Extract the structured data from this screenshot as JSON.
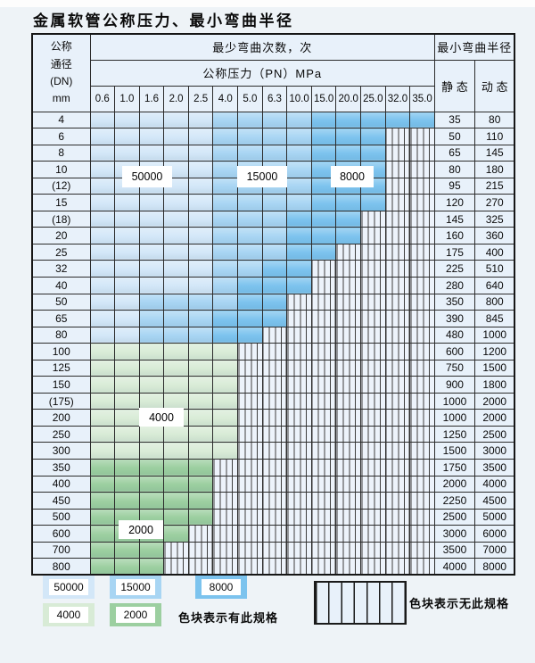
{
  "title": "金属软管公称压力、最小弯曲半径",
  "table": {
    "header": {
      "dn_lines": [
        "公称",
        "通径",
        "(DN)",
        "mm"
      ],
      "min_bend_cycles": "最少弯曲次数，次",
      "nominal_pressure": "公称压力（PN）MPa",
      "pressure_columns": [
        "0.6",
        "1.0",
        "1.6",
        "2.0",
        "2.5",
        "4.0",
        "5.0",
        "6.3",
        "10.0",
        "15.0",
        "20.0",
        "25.0",
        "32.0",
        "35.0"
      ],
      "min_bend_radius": "最小弯曲半径",
      "static_label": "静 态",
      "dynamic_label": "动 态"
    },
    "cell_legend": {
      "L": "50000次-浅蓝",
      "M": "15000次-中蓝",
      "D": "8000次-深蓝",
      "g": "4000次-浅绿",
      "G": "2000次-深绿",
      "X": "无此规格-竖线"
    },
    "rows": [
      {
        "dn": "4",
        "cells": "LLLLLMMMMDDDDD",
        "static": "35",
        "dynamic": "80"
      },
      {
        "dn": "6",
        "cells": "LLLLLMMMMDDDXX",
        "static": "50",
        "dynamic": "110"
      },
      {
        "dn": "8",
        "cells": "LLLLLMMMMDDDXX",
        "static": "65",
        "dynamic": "145"
      },
      {
        "dn": "10",
        "cells": "LLLLLMMMMDDDXX",
        "static": "80",
        "dynamic": "180"
      },
      {
        "dn": "(12)",
        "cells": "LLLLLMMMMDDDXX",
        "static": "95",
        "dynamic": "215"
      },
      {
        "dn": "15",
        "cells": "LLLLLMMMMDDDXX",
        "static": "120",
        "dynamic": "270"
      },
      {
        "dn": "(18)",
        "cells": "LLLLLMMMDDDXXX",
        "static": "145",
        "dynamic": "325"
      },
      {
        "dn": "20",
        "cells": "LLLLLMMMDDDXXX",
        "static": "160",
        "dynamic": "360"
      },
      {
        "dn": "25",
        "cells": "LLLLLMMMDDXXXX",
        "static": "175",
        "dynamic": "400"
      },
      {
        "dn": "32",
        "cells": "LLLLLMMDDXXXXX",
        "static": "225",
        "dynamic": "510"
      },
      {
        "dn": "40",
        "cells": "LLLLLMDDDXXXXX",
        "static": "280",
        "dynamic": "640"
      },
      {
        "dn": "50",
        "cells": "LLMMMMDDXXXXXX",
        "static": "350",
        "dynamic": "800"
      },
      {
        "dn": "65",
        "cells": "LLMMMDDDXXXXXX",
        "static": "390",
        "dynamic": "845"
      },
      {
        "dn": "80",
        "cells": "LLMMMDDXXXXXXX",
        "static": "480",
        "dynamic": "1000"
      },
      {
        "dn": "100",
        "cells": "ggggggXXXXXXXX",
        "static": "600",
        "dynamic": "1200"
      },
      {
        "dn": "125",
        "cells": "ggggggXXXXXXXX",
        "static": "750",
        "dynamic": "1500"
      },
      {
        "dn": "150",
        "cells": "ggggggXXXXXXXX",
        "static": "900",
        "dynamic": "1800"
      },
      {
        "dn": "(175)",
        "cells": "ggggggXXXXXXXX",
        "static": "1000",
        "dynamic": "2000"
      },
      {
        "dn": "200",
        "cells": "ggggggXXXXXXXX",
        "static": "1000",
        "dynamic": "2000"
      },
      {
        "dn": "250",
        "cells": "ggggggXXXXXXXX",
        "static": "1250",
        "dynamic": "2500"
      },
      {
        "dn": "300",
        "cells": "ggggggXXXXXXXX",
        "static": "1500",
        "dynamic": "3000"
      },
      {
        "dn": "350",
        "cells": "GGGGGXXXXXXXXX",
        "static": "1750",
        "dynamic": "3500"
      },
      {
        "dn": "400",
        "cells": "GGGGGXXXXXXXXX",
        "static": "2000",
        "dynamic": "4000"
      },
      {
        "dn": "450",
        "cells": "GGGGGXXXXXXXXX",
        "static": "2250",
        "dynamic": "4500"
      },
      {
        "dn": "500",
        "cells": "GGGGGXXXXXXXXX",
        "static": "2500",
        "dynamic": "5000"
      },
      {
        "dn": "600",
        "cells": "GGGGXXXXXXXXXX",
        "static": "3000",
        "dynamic": "6000"
      },
      {
        "dn": "700",
        "cells": "GGGXXXXXXXXXXX",
        "static": "3500",
        "dynamic": "7000"
      },
      {
        "dn": "800",
        "cells": "GGGXXXXXXXXXXX",
        "static": "4000",
        "dynamic": "8000"
      }
    ]
  },
  "overlays": {
    "b50000": "50000",
    "b15000": "15000",
    "b8000": "8000",
    "g4000": "4000",
    "g2000": "2000"
  },
  "legend": {
    "items": [
      {
        "label": "50000",
        "color": "#d3e7f8"
      },
      {
        "label": "15000",
        "color": "#a8d5f3"
      },
      {
        "label": "8000",
        "color": "#7cc3ee"
      },
      {
        "label": "4000",
        "color": "#d8ebd6"
      },
      {
        "label": "2000",
        "color": "#9ccfa0"
      }
    ],
    "available_note": "色块表示有此规格",
    "none_note": "色块表示无此规格"
  },
  "colors": {
    "page_bg": "#eef3f7",
    "cell_label_bg": "#e8f1fa",
    "blue_50000": "#d3e7f8",
    "blue_15000": "#a8d5f3",
    "blue_8000": "#7cc3ee",
    "green_4000": "#d8ebd6",
    "green_2000": "#9ccfa0",
    "no_spec_bg": "#edf3fb",
    "grid_border": "#2c2c2c"
  }
}
